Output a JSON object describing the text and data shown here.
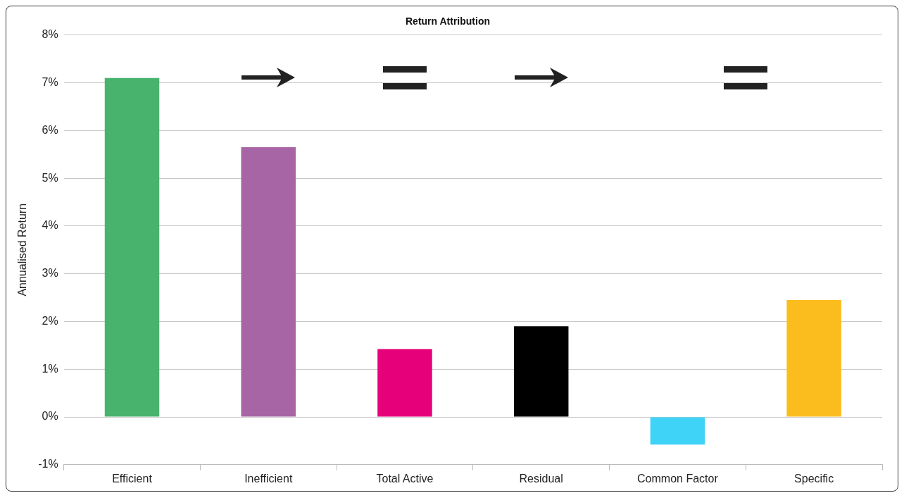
{
  "chart_data": {
    "type": "bar",
    "title": "Return Attribution",
    "ylabel": "Annualised Return",
    "categories": [
      "Efficient",
      "Inefficient",
      "Total Active",
      "Residual",
      "Common Factor",
      "Specific"
    ],
    "values": [
      7.1,
      5.65,
      1.42,
      1.9,
      -0.58,
      2.45
    ],
    "colors": [
      "#48b36c",
      "#a865a5",
      "#e6007a",
      "#000000",
      "#3fd3f8",
      "#fbbd1e"
    ],
    "ylim": [
      -1,
      8
    ],
    "yticks": [
      {
        "value": -1,
        "label": "-1%"
      },
      {
        "value": 0,
        "label": "0%"
      },
      {
        "value": 1,
        "label": "1%"
      },
      {
        "value": 2,
        "label": "2%"
      },
      {
        "value": 3,
        "label": "3%"
      },
      {
        "value": 4,
        "label": "4%"
      },
      {
        "value": 5,
        "label": "5%"
      },
      {
        "value": 6,
        "label": "6%"
      },
      {
        "value": 7,
        "label": "7%"
      },
      {
        "value": 8,
        "label": "8%"
      }
    ],
    "grid": "y",
    "legend": false
  }
}
